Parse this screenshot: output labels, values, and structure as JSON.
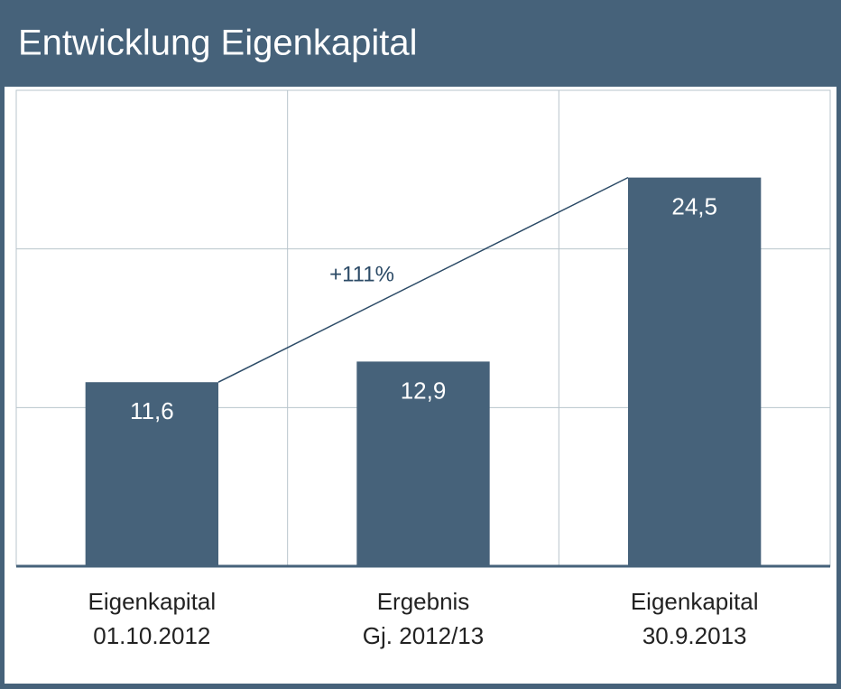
{
  "chart_data": {
    "type": "bar",
    "title": "Entwicklung Eigenkapital",
    "categories": [
      [
        "Eigenkapital",
        "01.10.2012"
      ],
      [
        "Ergebnis",
        "Gj. 2012/13"
      ],
      [
        "Eigenkapital",
        "30.9.2013"
      ]
    ],
    "values": [
      11.6,
      12.9,
      24.5
    ],
    "value_labels": [
      "11,6",
      "12,9",
      "24,5"
    ],
    "color": "#46627a",
    "ylim": [
      0,
      30
    ],
    "yticks": [
      0,
      10,
      20,
      30
    ],
    "grid": true,
    "annotation": "+111%"
  }
}
